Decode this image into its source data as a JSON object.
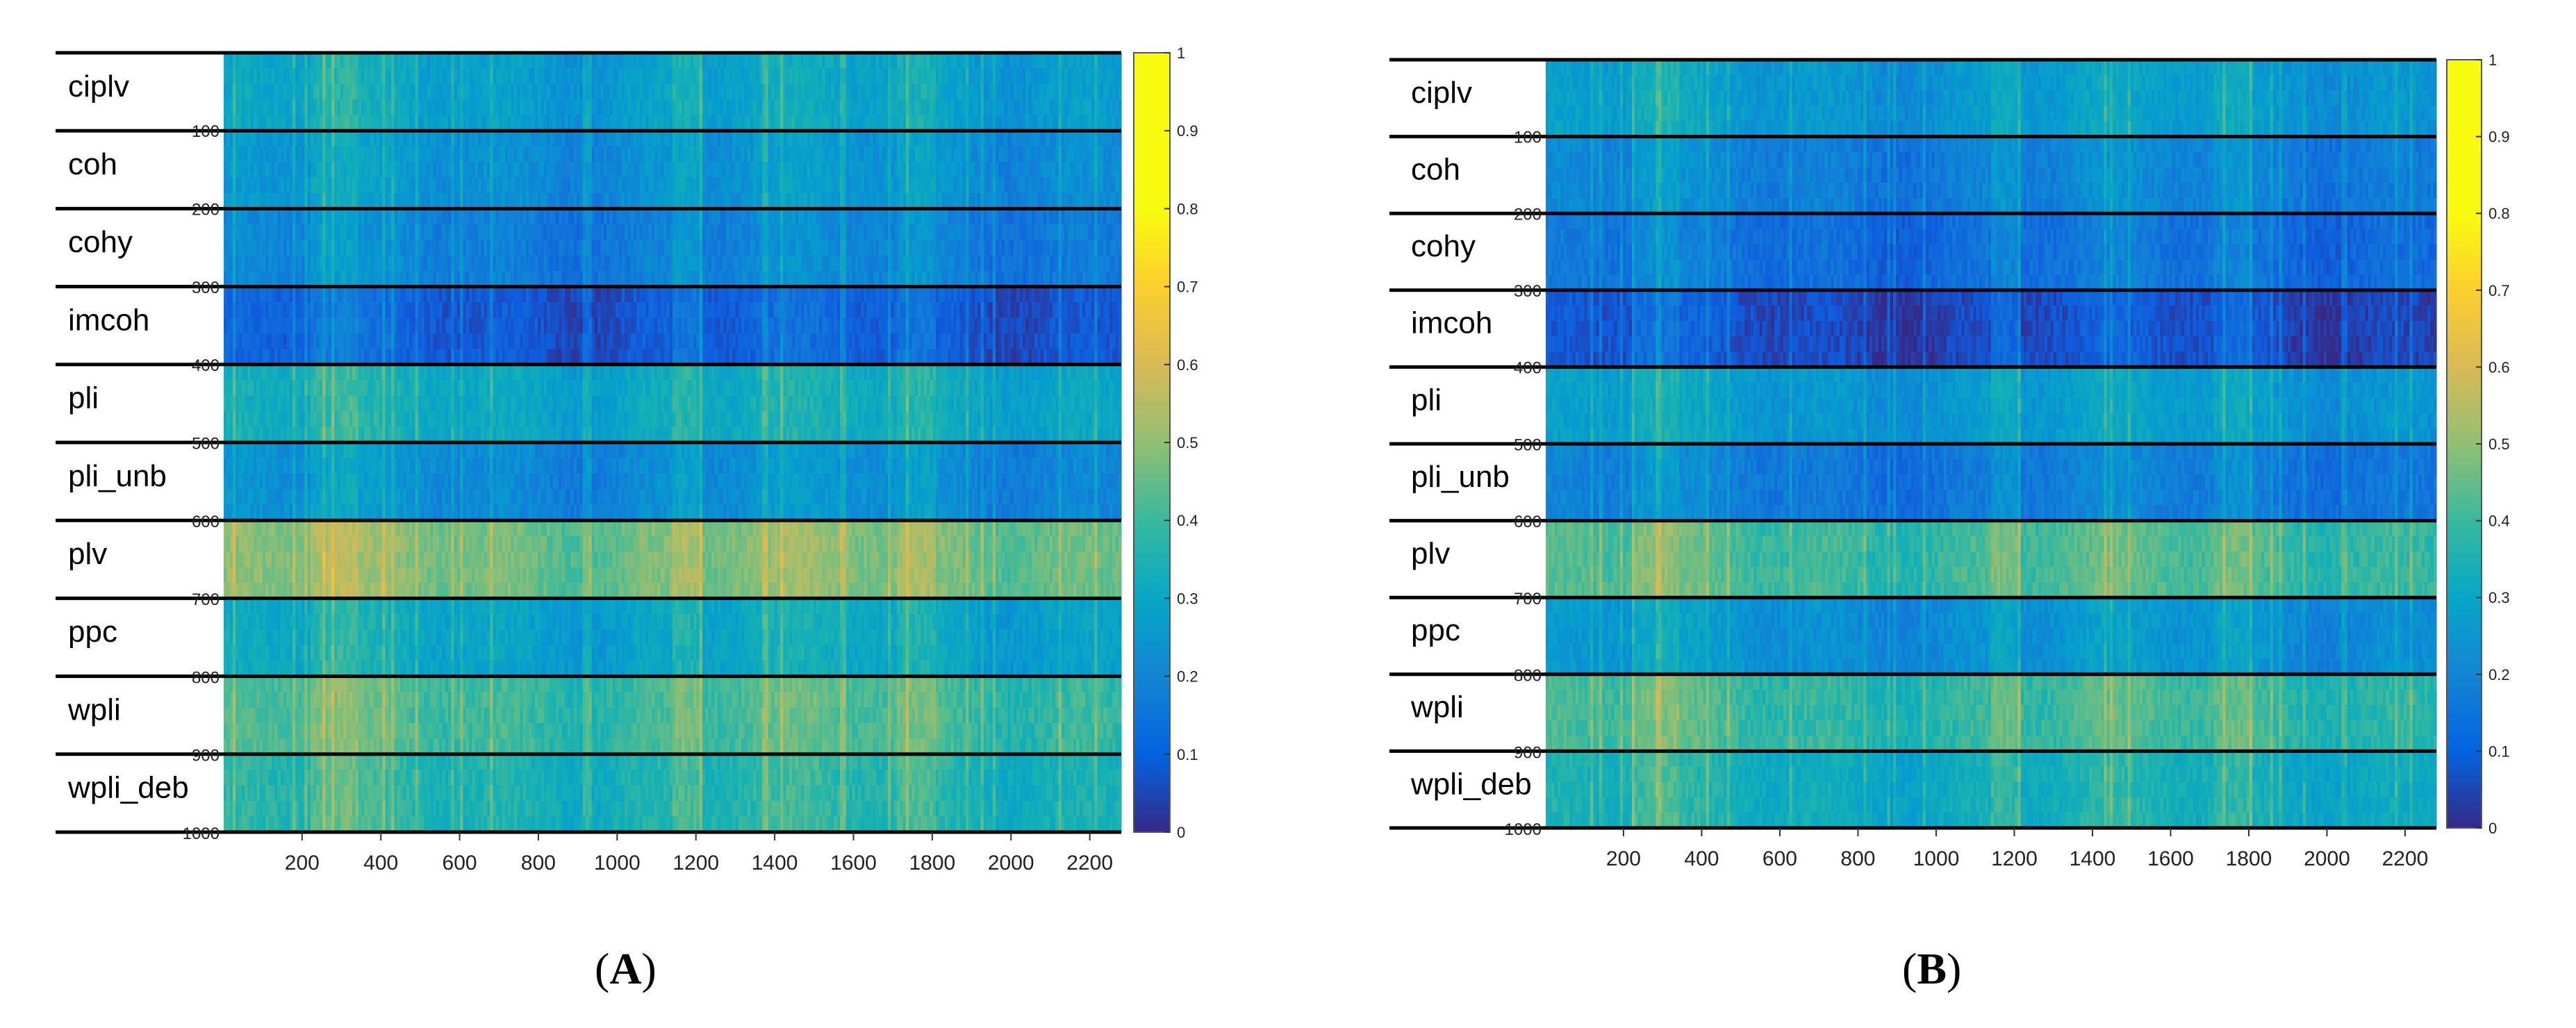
{
  "chart_data": [
    {
      "type": "heatmap",
      "panel_label": "A",
      "caption_open": "(",
      "caption_close": ")",
      "x_ticks": [
        200,
        400,
        600,
        800,
        1000,
        1200,
        1400,
        1600,
        1800,
        2000,
        2200
      ],
      "xlim": [
        1,
        2280
      ],
      "y_ticks": [
        100,
        200,
        300,
        400,
        500,
        600,
        700,
        800,
        900,
        1000
      ],
      "ylim": [
        1,
        1000
      ],
      "colorbar": {
        "min": 0,
        "max": 1,
        "ticks": [
          "0",
          "0.1",
          "0.2",
          "0.3",
          "0.4",
          "0.5",
          "0.6",
          "0.7",
          "0.8",
          "0.9",
          "1"
        ],
        "colormap": "parula"
      },
      "groups": [
        {
          "name": "ciplv",
          "mean_value": 0.36
        },
        {
          "name": "coh",
          "mean_value": 0.3
        },
        {
          "name": "cohy",
          "mean_value": 0.24
        },
        {
          "name": "imcoh",
          "mean_value": 0.12
        },
        {
          "name": "pli",
          "mean_value": 0.4
        },
        {
          "name": "pli_unb",
          "mean_value": 0.28
        },
        {
          "name": "plv",
          "mean_value": 0.6
        },
        {
          "name": "ppc",
          "mean_value": 0.38
        },
        {
          "name": "wpli",
          "mean_value": 0.52
        },
        {
          "name": "wpli_deb",
          "mean_value": 0.46
        }
      ]
    },
    {
      "type": "heatmap",
      "panel_label": "B",
      "caption_open": "(",
      "caption_close": ")",
      "x_ticks": [
        200,
        400,
        600,
        800,
        1000,
        1200,
        1400,
        1600,
        1800,
        2000,
        2200
      ],
      "xlim": [
        1,
        2280
      ],
      "y_ticks": [
        100,
        200,
        300,
        400,
        500,
        600,
        700,
        800,
        900,
        1000
      ],
      "ylim": [
        1,
        1000
      ],
      "colorbar": {
        "min": 0,
        "max": 1,
        "ticks": [
          "0",
          "0.1",
          "0.2",
          "0.3",
          "0.4",
          "0.5",
          "0.6",
          "0.7",
          "0.8",
          "0.9",
          "1"
        ],
        "colormap": "parula"
      },
      "groups": [
        {
          "name": "ciplv",
          "mean_value": 0.33
        },
        {
          "name": "coh",
          "mean_value": 0.24
        },
        {
          "name": "cohy",
          "mean_value": 0.18
        },
        {
          "name": "imcoh",
          "mean_value": 0.08
        },
        {
          "name": "pli",
          "mean_value": 0.33
        },
        {
          "name": "pli_unb",
          "mean_value": 0.22
        },
        {
          "name": "plv",
          "mean_value": 0.52
        },
        {
          "name": "ppc",
          "mean_value": 0.3
        },
        {
          "name": "wpli",
          "mean_value": 0.5
        },
        {
          "name": "wpli_deb",
          "mean_value": 0.42
        }
      ]
    }
  ]
}
